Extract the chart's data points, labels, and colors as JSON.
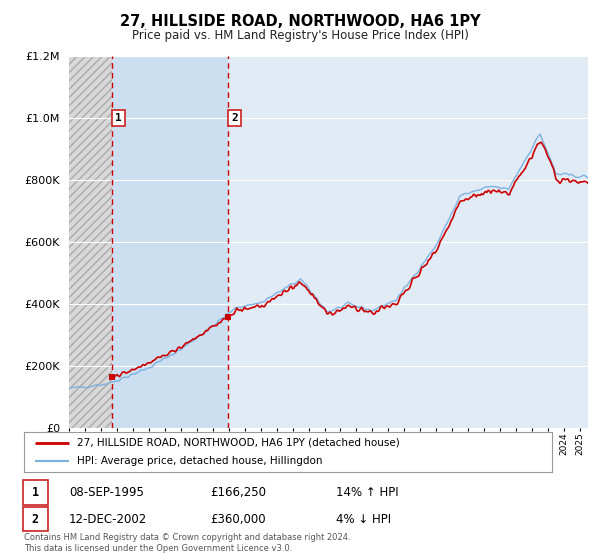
{
  "title": "27, HILLSIDE ROAD, NORTHWOOD, HA6 1PY",
  "subtitle": "Price paid vs. HM Land Registry's House Price Index (HPI)",
  "legend_label_red": "27, HILLSIDE ROAD, NORTHWOOD, HA6 1PY (detached house)",
  "legend_label_blue": "HPI: Average price, detached house, Hillingdon",
  "transaction1_date": "08-SEP-1995",
  "transaction1_price": "£166,250",
  "transaction1_hpi": "14% ↑ HPI",
  "transaction1_year": 1995.69,
  "transaction1_value": 166250,
  "transaction2_date": "12-DEC-2002",
  "transaction2_price": "£360,000",
  "transaction2_hpi": "4% ↓ HPI",
  "transaction2_year": 2002.95,
  "transaction2_value": 360000,
  "footnote1": "Contains HM Land Registry data © Crown copyright and database right 2024.",
  "footnote2": "This data is licensed under the Open Government Licence v3.0.",
  "xmin": 1993.0,
  "xmax": 2025.5,
  "ymin": 0,
  "ymax": 1200000,
  "background_color": "#ffffff",
  "plot_bg_color": "#e8f0f8",
  "hatch_color": "#c8c8c8",
  "red_color": "#cc0000",
  "blue_color": "#7aafe0",
  "grid_color": "#ffffff"
}
